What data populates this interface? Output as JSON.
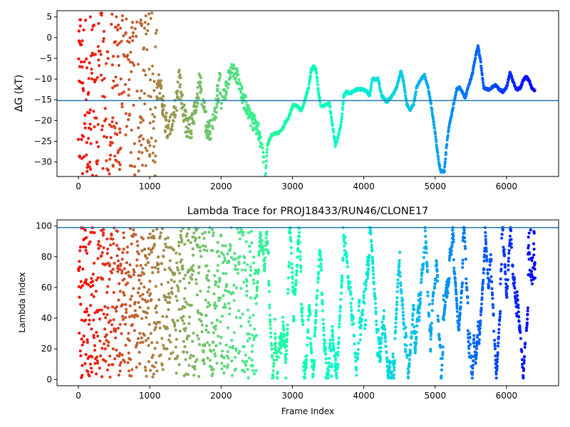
{
  "chart_data": [
    {
      "type": "scatter",
      "title": "",
      "xlabel": "",
      "ylabel": "ΔG (kT)",
      "xlim": [
        -300,
        6730
      ],
      "ylim": [
        -33.5,
        6.5
      ],
      "xticks": [
        0,
        1000,
        2000,
        3000,
        4000,
        5000,
        6000
      ],
      "yticks": [
        -30,
        -25,
        -20,
        -15,
        -10,
        -5,
        0,
        5
      ],
      "hline": -15.2,
      "hline_color": "#1f77b4",
      "colormap": "rainbow",
      "x_max_frame": 6400,
      "trace_path": [
        [
          2620,
          -33.5
        ],
        [
          2650,
          -26
        ],
        [
          2700,
          -23.5
        ],
        [
          2800,
          -23
        ],
        [
          2860,
          -22
        ],
        [
          2900,
          -20.5
        ],
        [
          2940,
          -19.5
        ],
        [
          2980,
          -17.5
        ],
        [
          3010,
          -16.3
        ],
        [
          3060,
          -16.5
        ],
        [
          3120,
          -17.5
        ],
        [
          3150,
          -16.5
        ],
        [
          3190,
          -14
        ],
        [
          3230,
          -12
        ],
        [
          3260,
          -8
        ],
        [
          3290,
          -7
        ],
        [
          3330,
          -7.5
        ],
        [
          3370,
          -14
        ],
        [
          3400,
          -16.5
        ],
        [
          3440,
          -16.5
        ],
        [
          3480,
          -16
        ],
        [
          3520,
          -16
        ],
        [
          3560,
          -21
        ],
        [
          3600,
          -26
        ],
        [
          3640,
          -24
        ],
        [
          3680,
          -21
        ],
        [
          3720,
          -14
        ],
        [
          3760,
          -13
        ],
        [
          3800,
          -13.5
        ],
        [
          3850,
          -13
        ],
        [
          3900,
          -12.5
        ],
        [
          4000,
          -12.5
        ],
        [
          4040,
          -13
        ],
        [
          4080,
          -14
        ],
        [
          4120,
          -10
        ],
        [
          4150,
          -10
        ],
        [
          4200,
          -10
        ],
        [
          4250,
          -14
        ],
        [
          4320,
          -15.5
        ],
        [
          4400,
          -14
        ],
        [
          4460,
          -12
        ],
        [
          4520,
          -8
        ],
        [
          4560,
          -11
        ],
        [
          4600,
          -16
        ],
        [
          4650,
          -17.5
        ],
        [
          4700,
          -16
        ],
        [
          4740,
          -12
        ],
        [
          4800,
          -10
        ],
        [
          4850,
          -9
        ],
        [
          4900,
          -12
        ],
        [
          4950,
          -17
        ],
        [
          5000,
          -23
        ],
        [
          5050,
          -30
        ],
        [
          5080,
          -32.2
        ],
        [
          5130,
          -32.2
        ],
        [
          5160,
          -26
        ],
        [
          5200,
          -21
        ],
        [
          5260,
          -16
        ],
        [
          5300,
          -12.5
        ],
        [
          5340,
          -12
        ],
        [
          5380,
          -13
        ],
        [
          5420,
          -14.5
        ],
        [
          5480,
          -11
        ],
        [
          5520,
          -9
        ],
        [
          5560,
          -5
        ],
        [
          5600,
          -2
        ],
        [
          5640,
          -6
        ],
        [
          5680,
          -12
        ],
        [
          5750,
          -12.5
        ],
        [
          5800,
          -12
        ],
        [
          5850,
          -11.5
        ],
        [
          5900,
          -12.5
        ],
        [
          5950,
          -13
        ],
        [
          6000,
          -12
        ],
        [
          6050,
          -8.5
        ],
        [
          6080,
          -10
        ],
        [
          6120,
          -12
        ],
        [
          6150,
          -12.5
        ],
        [
          6200,
          -12
        ],
        [
          6240,
          -10
        ],
        [
          6280,
          -9.5
        ],
        [
          6320,
          -10.5
        ],
        [
          6350,
          -12
        ],
        [
          6380,
          -12.5
        ],
        [
          6400,
          -13
        ]
      ]
    },
    {
      "type": "scatter",
      "title": "Lambda Trace for PROJ18433/RUN46/CLONE17",
      "xlabel": "Frame Index",
      "ylabel": "Lambda Index",
      "xlim": [
        -300,
        6730
      ],
      "ylim": [
        -4,
        104
      ],
      "xticks": [
        0,
        1000,
        2000,
        3000,
        4000,
        5000,
        6000
      ],
      "yticks": [
        0,
        20,
        40,
        60,
        80,
        100
      ],
      "hline": 99,
      "hline_color": "#1f77b4",
      "colormap": "rainbow",
      "x_max_frame": 6400
    }
  ]
}
